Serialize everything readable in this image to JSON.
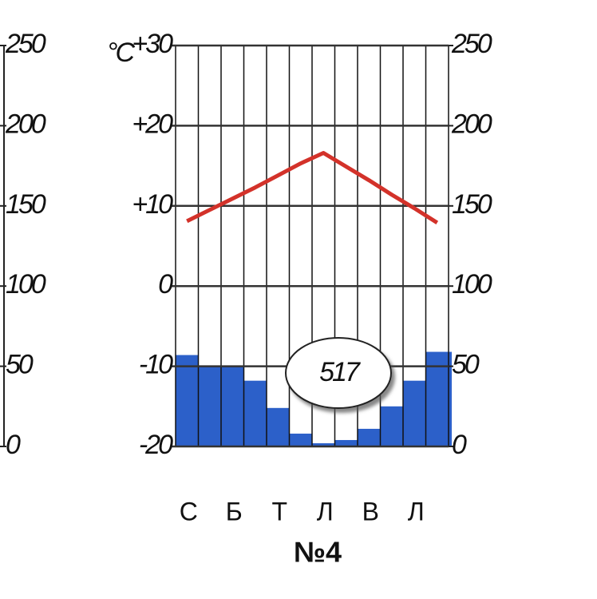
{
  "chart_data": [
    {
      "type": "line",
      "ylim": [
        0,
        250
      ],
      "yticks": [
        0,
        50,
        100,
        150,
        200,
        250
      ]
    },
    {
      "type": "combo",
      "title": "№4",
      "ylabel": "°C",
      "annotation": "517",
      "categories": [
        "С",
        null,
        "Б",
        null,
        "Т",
        null,
        "Л",
        null,
        "В",
        null,
        "Л",
        null
      ],
      "series": [
        {
          "type": "bar",
          "axis": "y2",
          "color": "#2c60c9",
          "values": [
            57,
            50,
            50,
            41,
            24,
            8,
            2,
            4,
            11,
            25,
            41,
            59
          ]
        },
        {
          "type": "line",
          "color": "#d3322a",
          "values": [
            8.1,
            9.5,
            10.9,
            12.3,
            13.8,
            15.3,
            16.6,
            14.9,
            13.2,
            11.4,
            9.7,
            7.9
          ]
        }
      ],
      "ylim": [
        -20,
        30
      ],
      "yticks": [
        {
          "value": -20,
          "label": "-20"
        },
        {
          "value": -10,
          "label": "-10"
        },
        0,
        {
          "value": 10,
          "label": "+10"
        },
        {
          "value": 20,
          "label": "+20"
        },
        {
          "value": 30,
          "label": "+30"
        }
      ],
      "y2lim": [
        0,
        250
      ],
      "y2ticks": [
        0,
        50,
        100,
        150,
        200,
        250
      ],
      "grid": true
    }
  ]
}
